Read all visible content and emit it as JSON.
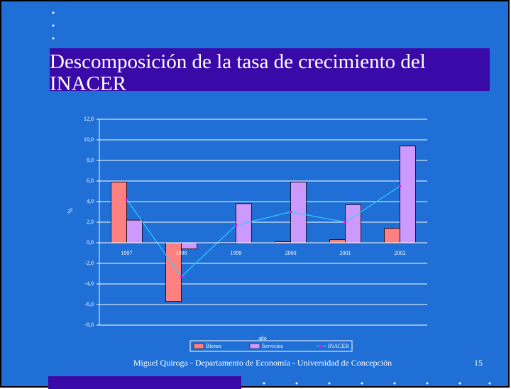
{
  "chart_data": {
    "type": "bar",
    "title": "Descomposición de la tasa de crecimiento del INACER",
    "categories": [
      "1997",
      "1998",
      "1999",
      "2000",
      "2001",
      "2002"
    ],
    "series": [
      {
        "name": "Bienes",
        "color": "#ff8080",
        "values": [
          5.9,
          -5.7,
          -0.1,
          0.1,
          0.3,
          1.4
        ]
      },
      {
        "name": "Servicios",
        "color": "#cc99ff",
        "values": [
          2.2,
          -0.6,
          3.8,
          5.9,
          3.7,
          9.4
        ]
      },
      {
        "name": "INACER",
        "type": "line",
        "color": "#33ccff",
        "marker_color": "#ff00ff",
        "values": [
          4.2,
          -3.3,
          1.7,
          3.0,
          2.0,
          5.5
        ]
      }
    ],
    "ylim": [
      -8,
      12
    ],
    "yticks": [
      {
        "value": -8,
        "label": "-8,0"
      },
      {
        "value": -6,
        "label": "-6,0"
      },
      {
        "value": -4,
        "label": "-4,0"
      },
      {
        "value": -2,
        "label": "-2,0"
      },
      {
        "value": 0,
        "label": "0,0"
      },
      {
        "value": 2,
        "label": "2,0"
      },
      {
        "value": 4,
        "label": "4,0"
      },
      {
        "value": 6,
        "label": "6,0"
      },
      {
        "value": 8,
        "label": "8,0"
      },
      {
        "value": 10,
        "label": "10,0"
      },
      {
        "value": 12,
        "label": "12,0"
      }
    ],
    "x_label": "año",
    "y_label": "%",
    "grid": true,
    "legend": "bottom"
  },
  "footer": {
    "author": "Miguel Quiroga - Departamento de Economía - Universidad de Concepción",
    "page": "15"
  }
}
